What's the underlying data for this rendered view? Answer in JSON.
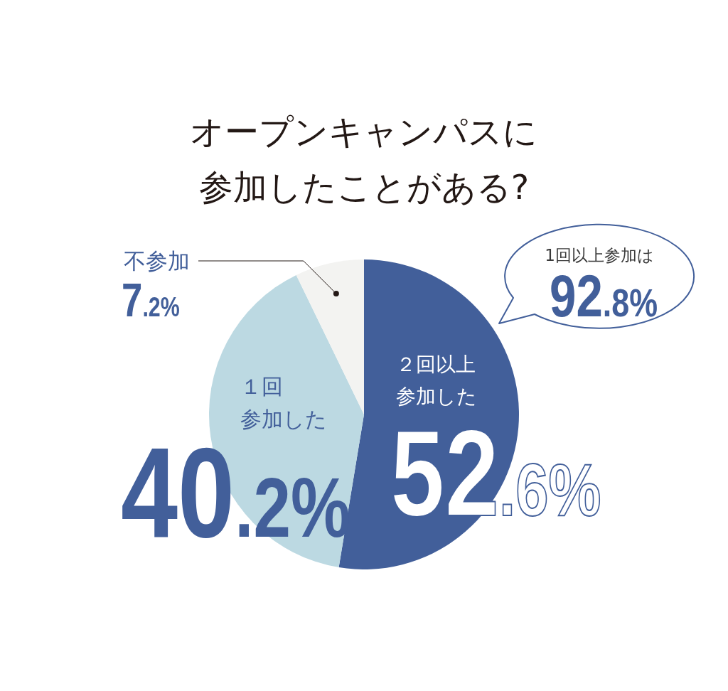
{
  "chart_data": {
    "type": "pie",
    "title": "オープンキャンパスに参加したことがある?",
    "categories": [
      "２回以上参加した",
      "１回参加した",
      "不参加"
    ],
    "values": [
      52.6,
      40.2,
      7.2
    ],
    "colors": [
      "#425f9a",
      "#bcd9e2",
      "#f3f3f1"
    ],
    "value_labels": [
      "52.6%",
      "40.2%",
      "7.2%"
    ],
    "annotations": [
      "1回以上参加は",
      "92.8%"
    ]
  }
}
